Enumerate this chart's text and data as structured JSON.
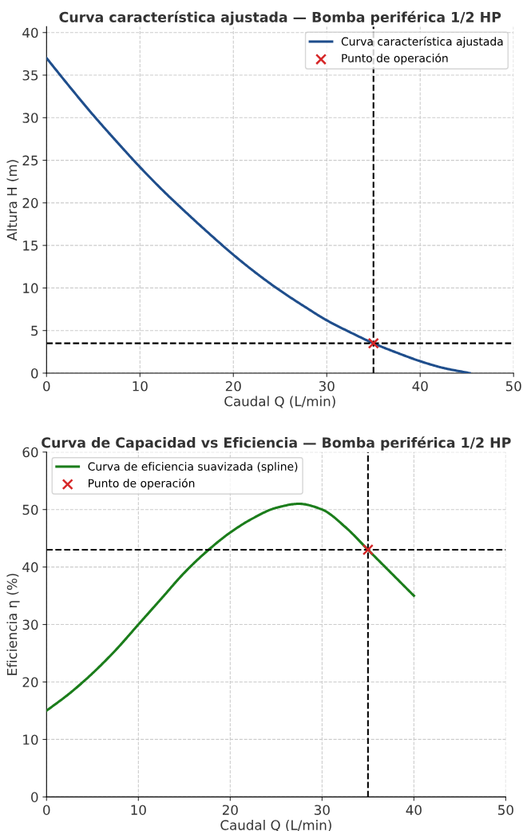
{
  "chart_data": [
    {
      "type": "line",
      "title": "Curva característica ajustada — Bomba periférica 1/2 HP",
      "xlabel": "Caudal Q (L/min)",
      "ylabel": "Altura H (m)",
      "xlim": [
        0,
        50
      ],
      "ylim": [
        0,
        40.7
      ],
      "xticks": [
        0,
        10,
        20,
        30,
        40,
        50
      ],
      "yticks": [
        0,
        5,
        10,
        15,
        20,
        25,
        30,
        35,
        40
      ],
      "grid": true,
      "legend": "top right",
      "marker": "none",
      "line_style": "solid",
      "series": [
        {
          "name": "Curva característica ajustada",
          "color": "#1f4e8c",
          "x": [
            0,
            2.5,
            5,
            7.5,
            10,
            12.5,
            15,
            17.5,
            20,
            22.5,
            25,
            27.5,
            30,
            32.5,
            35,
            37.5,
            40,
            42.5,
            45.3
          ],
          "values": [
            37,
            33.6,
            30.3,
            27.2,
            24.2,
            21.4,
            18.8,
            16.3,
            13.9,
            11.7,
            9.7,
            7.9,
            6.2,
            4.8,
            3.5,
            2.4,
            1.4,
            0.6,
            0
          ]
        },
        {
          "name": "Punto de operación",
          "type": "scatter",
          "color": "#d62728",
          "marker": "cross",
          "x": [
            35
          ],
          "values": [
            3.5
          ]
        }
      ],
      "ref_lines": [
        {
          "axis": "x",
          "value": 35,
          "color": "#000000",
          "line_style": "dashed"
        },
        {
          "axis": "y",
          "value": 3.5,
          "color": "#000000",
          "line_style": "dashed"
        }
      ]
    },
    {
      "type": "line",
      "title": "Curva de Capacidad vs Eficiencia — Bomba periférica 1/2 HP",
      "xlabel": "Caudal Q (L/min)",
      "ylabel": "Eficiencia η (%)",
      "xlim": [
        0,
        50
      ],
      "ylim": [
        0,
        60
      ],
      "xticks": [
        0,
        10,
        20,
        30,
        40,
        50
      ],
      "yticks": [
        0,
        10,
        20,
        30,
        40,
        50,
        60
      ],
      "grid": true,
      "legend": "top left",
      "marker": "none",
      "line_style": "solid",
      "series": [
        {
          "name": "Curva de eficiencia suavizada (spline)",
          "color": "#1b7d1b",
          "x": [
            0,
            2.5,
            5,
            7.5,
            10,
            12.5,
            15,
            17.5,
            20,
            22.5,
            25,
            27.5,
            30,
            32.5,
            35,
            37.5,
            40
          ],
          "values": [
            15,
            18,
            21.5,
            25.5,
            30,
            34.5,
            39,
            42.8,
            46,
            48.5,
            50.3,
            51,
            50,
            47,
            43,
            39,
            35
          ]
        },
        {
          "name": "Punto de operación",
          "type": "scatter",
          "color": "#d62728",
          "marker": "cross",
          "x": [
            35
          ],
          "values": [
            43
          ]
        }
      ],
      "ref_lines": [
        {
          "axis": "x",
          "value": 35,
          "color": "#000000",
          "line_style": "dashed"
        },
        {
          "axis": "y",
          "value": 43,
          "color": "#000000",
          "line_style": "dashed"
        }
      ]
    }
  ]
}
